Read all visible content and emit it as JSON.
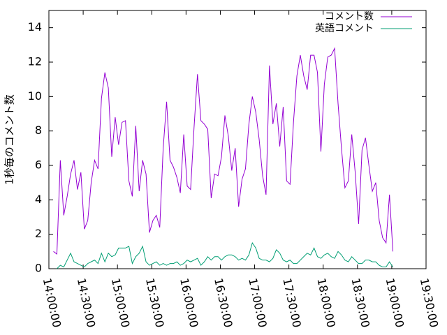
{
  "chart_data": {
    "type": "line",
    "ylabel": "1秒毎のコメント数",
    "x": [
      "14:04:00",
      "14:07:00",
      "14:10:00",
      "14:13:00",
      "14:16:00",
      "14:19:00",
      "14:22:00",
      "14:25:00",
      "14:28:00",
      "14:31:00",
      "14:34:00",
      "14:37:00",
      "14:40:00",
      "14:43:00",
      "14:46:00",
      "14:49:00",
      "14:52:00",
      "14:55:00",
      "14:58:00",
      "15:01:00",
      "15:04:00",
      "15:07:00",
      "15:10:00",
      "15:13:00",
      "15:16:00",
      "15:19:00",
      "15:22:00",
      "15:25:00",
      "15:28:00",
      "15:31:00",
      "15:34:00",
      "15:37:00",
      "15:40:00",
      "15:43:00",
      "15:46:00",
      "15:49:00",
      "15:52:00",
      "15:55:00",
      "15:58:00",
      "16:01:00",
      "16:04:00",
      "16:07:00",
      "16:10:00",
      "16:13:00",
      "16:16:00",
      "16:19:00",
      "16:22:00",
      "16:25:00",
      "16:28:00",
      "16:31:00",
      "16:34:00",
      "16:37:00",
      "16:40:00",
      "16:43:00",
      "16:46:00",
      "16:49:00",
      "16:52:00",
      "16:55:00",
      "16:58:00",
      "17:01:00",
      "17:04:00",
      "17:07:00",
      "17:10:00",
      "17:13:00",
      "17:16:00",
      "17:19:00",
      "17:22:00",
      "17:25:00",
      "17:28:00",
      "17:31:00",
      "17:34:00",
      "17:37:00",
      "17:40:00",
      "17:43:00",
      "17:46:00",
      "17:49:00",
      "17:52:00",
      "17:55:00",
      "17:58:00",
      "18:01:00",
      "18:04:00",
      "18:07:00",
      "18:10:00",
      "18:13:00",
      "18:16:00",
      "18:19:00",
      "18:22:00",
      "18:25:00",
      "18:28:00",
      "18:31:00",
      "18:34:00",
      "18:37:00",
      "18:40:00",
      "18:43:00",
      "18:46:00",
      "18:49:00",
      "18:52:00",
      "18:55:00",
      "18:58:00",
      "19:01:00"
    ],
    "series": [
      {
        "name": "コメント数",
        "color": "#9400d3",
        "values": [
          1.0,
          0.85,
          6.3,
          3.1,
          4.2,
          5.5,
          6.3,
          4.6,
          5.6,
          2.3,
          2.8,
          5.0,
          6.3,
          5.8,
          9.9,
          11.4,
          10.5,
          6.5,
          8.8,
          7.2,
          8.5,
          8.6,
          5.1,
          4.2,
          8.3,
          4.5,
          6.3,
          5.5,
          2.1,
          2.8,
          3.1,
          2.4,
          7.0,
          9.7,
          6.3,
          5.9,
          5.3,
          4.4,
          7.8,
          4.8,
          4.6,
          8.2,
          11.3,
          8.6,
          8.4,
          8.1,
          4.1,
          5.5,
          5.4,
          6.5,
          8.9,
          7.7,
          5.7,
          7.0,
          3.6,
          5.2,
          5.8,
          8.4,
          10.0,
          9.1,
          7.5,
          5.4,
          4.3,
          11.8,
          8.4,
          9.6,
          7.1,
          9.4,
          5.1,
          4.9,
          8.5,
          11.2,
          12.4,
          11.2,
          10.4,
          12.4,
          12.4,
          11.4,
          6.8,
          10.7,
          12.3,
          12.4,
          12.8,
          9.6,
          7.0,
          4.7,
          5.1,
          7.8,
          5.6,
          2.6,
          6.9,
          7.6,
          6.0,
          4.5,
          5.0,
          2.8,
          1.8,
          1.5,
          4.3,
          1.0
        ]
      },
      {
        "name": "英語コメント",
        "color": "#009e73",
        "values": [
          null,
          0.0,
          0.2,
          0.1,
          0.5,
          0.9,
          0.4,
          0.3,
          0.2,
          0.1,
          0.3,
          0.4,
          0.5,
          0.3,
          0.9,
          0.4,
          0.9,
          0.7,
          0.8,
          1.2,
          1.2,
          1.2,
          1.3,
          0.3,
          0.7,
          0.9,
          1.3,
          0.4,
          0.2,
          0.3,
          0.4,
          0.2,
          0.3,
          0.2,
          0.3,
          0.3,
          0.4,
          0.2,
          0.3,
          0.5,
          0.4,
          0.5,
          0.6,
          0.2,
          0.4,
          0.7,
          0.5,
          0.7,
          0.7,
          0.5,
          0.7,
          0.8,
          0.8,
          0.7,
          0.5,
          0.6,
          0.5,
          0.8,
          1.5,
          1.2,
          0.6,
          0.5,
          0.5,
          0.4,
          0.6,
          1.1,
          0.9,
          0.5,
          0.4,
          0.5,
          0.3,
          0.3,
          0.5,
          0.7,
          0.9,
          0.8,
          1.2,
          0.7,
          0.6,
          0.8,
          0.9,
          0.7,
          0.6,
          1.0,
          0.8,
          0.5,
          0.4,
          0.7,
          0.5,
          0.3,
          0.3,
          0.5,
          0.5,
          0.4,
          0.4,
          0.2,
          0.1,
          0.1,
          0.4,
          0.1
        ]
      }
    ],
    "xlim": [
      "14:00:00",
      "19:30:00"
    ],
    "xticks": [
      "14:00:00",
      "14:30:00",
      "15:00:00",
      "15:30:00",
      "16:00:00",
      "16:30:00",
      "17:00:00",
      "17:30:00",
      "18:00:00",
      "18:30:00",
      "19:00:00",
      "19:30:00"
    ],
    "ylim": [
      0,
      15
    ],
    "yticks": [
      0,
      2,
      4,
      6,
      8,
      10,
      12,
      14
    ],
    "legend": "top-right"
  }
}
